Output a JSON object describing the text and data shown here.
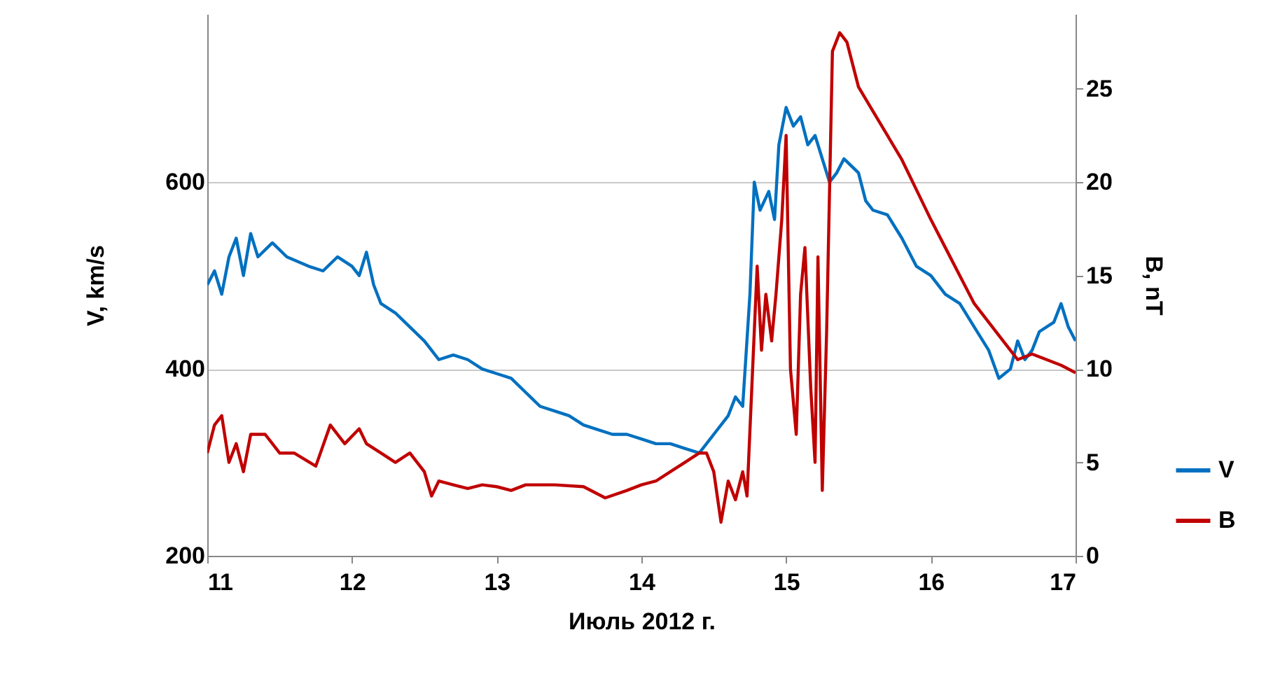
{
  "chart_data": {
    "type": "line",
    "xlabel": "Июль 2012 г.",
    "ylabel": "V, km/s",
    "y2label": "B, nT",
    "xlim": [
      11,
      17
    ],
    "xticks": [
      11,
      12,
      13,
      14,
      15,
      16,
      17
    ],
    "ylim": [
      200,
      780
    ],
    "yticks": [
      200,
      400,
      600
    ],
    "y2lim": [
      0,
      29
    ],
    "y2ticks": [
      0,
      5,
      10,
      15,
      20,
      25
    ],
    "grid": "y",
    "legend": "bottom right",
    "series": [
      {
        "name": "V",
        "color": "#0070c0",
        "x": [
          11.0,
          11.05,
          11.1,
          11.15,
          11.2,
          11.25,
          11.3,
          11.35,
          11.45,
          11.55,
          11.7,
          11.8,
          11.9,
          12.0,
          12.05,
          12.1,
          12.15,
          12.2,
          12.3,
          12.4,
          12.5,
          12.55,
          12.6,
          12.7,
          12.8,
          12.9,
          13.0,
          13.1,
          13.2,
          13.3,
          13.4,
          13.5,
          13.6,
          13.7,
          13.8,
          13.9,
          14.0,
          14.1,
          14.2,
          14.3,
          14.4,
          14.5,
          14.6,
          14.65,
          14.7,
          14.75,
          14.78,
          14.82,
          14.88,
          14.92,
          14.95,
          15.0,
          15.05,
          15.1,
          15.15,
          15.2,
          15.3,
          15.35,
          15.4,
          15.5,
          15.55,
          15.6,
          15.7,
          15.8,
          15.9,
          16.0,
          16.1,
          16.2,
          16.3,
          16.4,
          16.47,
          16.55,
          16.6,
          16.65,
          16.7,
          16.75,
          16.85,
          16.9,
          16.95,
          17.0
        ],
        "values": [
          490,
          505,
          480,
          520,
          540,
          500,
          545,
          520,
          535,
          520,
          510,
          505,
          520,
          510,
          500,
          525,
          490,
          470,
          460,
          445,
          430,
          420,
          410,
          415,
          410,
          400,
          395,
          390,
          375,
          360,
          355,
          350,
          340,
          335,
          330,
          330,
          325,
          320,
          320,
          315,
          310,
          330,
          350,
          370,
          360,
          480,
          600,
          570,
          590,
          560,
          640,
          680,
          660,
          670,
          640,
          650,
          600,
          610,
          625,
          610,
          580,
          570,
          565,
          540,
          510,
          500,
          480,
          470,
          445,
          420,
          390,
          400,
          430,
          410,
          420,
          440,
          450,
          470,
          445,
          430
        ]
      },
      {
        "name": "B",
        "color": "#c00000",
        "axis": "y2",
        "x": [
          11.0,
          11.05,
          11.1,
          11.15,
          11.2,
          11.25,
          11.3,
          11.4,
          11.5,
          11.6,
          11.75,
          11.85,
          11.95,
          12.05,
          12.1,
          12.2,
          12.3,
          12.4,
          12.5,
          12.55,
          12.6,
          12.7,
          12.8,
          12.9,
          13.0,
          13.1,
          13.2,
          13.4,
          13.6,
          13.75,
          13.9,
          14.0,
          14.1,
          14.2,
          14.3,
          14.4,
          14.45,
          14.5,
          14.55,
          14.6,
          14.65,
          14.7,
          14.73,
          14.78,
          14.8,
          14.83,
          14.86,
          14.9,
          14.93,
          14.97,
          15.0,
          15.03,
          15.07,
          15.1,
          15.13,
          15.17,
          15.2,
          15.22,
          15.25,
          15.28,
          15.32,
          15.37,
          15.42,
          15.5,
          15.6,
          15.7,
          15.8,
          15.9,
          16.0,
          16.1,
          16.2,
          16.3,
          16.4,
          16.5,
          16.6,
          16.7,
          16.8,
          16.9,
          17.0
        ],
        "values": [
          5.5,
          7,
          7.5,
          5,
          6,
          4.5,
          6.5,
          6.5,
          5.5,
          5.5,
          4.8,
          7,
          6,
          6.8,
          6,
          5.5,
          5,
          5.5,
          4.5,
          3.2,
          4,
          3.8,
          3.6,
          3.8,
          3.7,
          3.5,
          3.8,
          3.8,
          3.7,
          3.1,
          3.5,
          3.8,
          4,
          4.5,
          5,
          5.5,
          5.5,
          4.5,
          1.8,
          4,
          3,
          4.5,
          3.2,
          12,
          15.5,
          11,
          14,
          11.5,
          14,
          18,
          22.5,
          10,
          6.5,
          14,
          16.5,
          9,
          5,
          16,
          3.5,
          12,
          27,
          28,
          27.5,
          25.1,
          23.8,
          22.5,
          21.2,
          19.6,
          18,
          16.5,
          15,
          13.5,
          12.5,
          11.5,
          10.5,
          10.8,
          10.5,
          10.2,
          9.8
        ]
      }
    ]
  }
}
